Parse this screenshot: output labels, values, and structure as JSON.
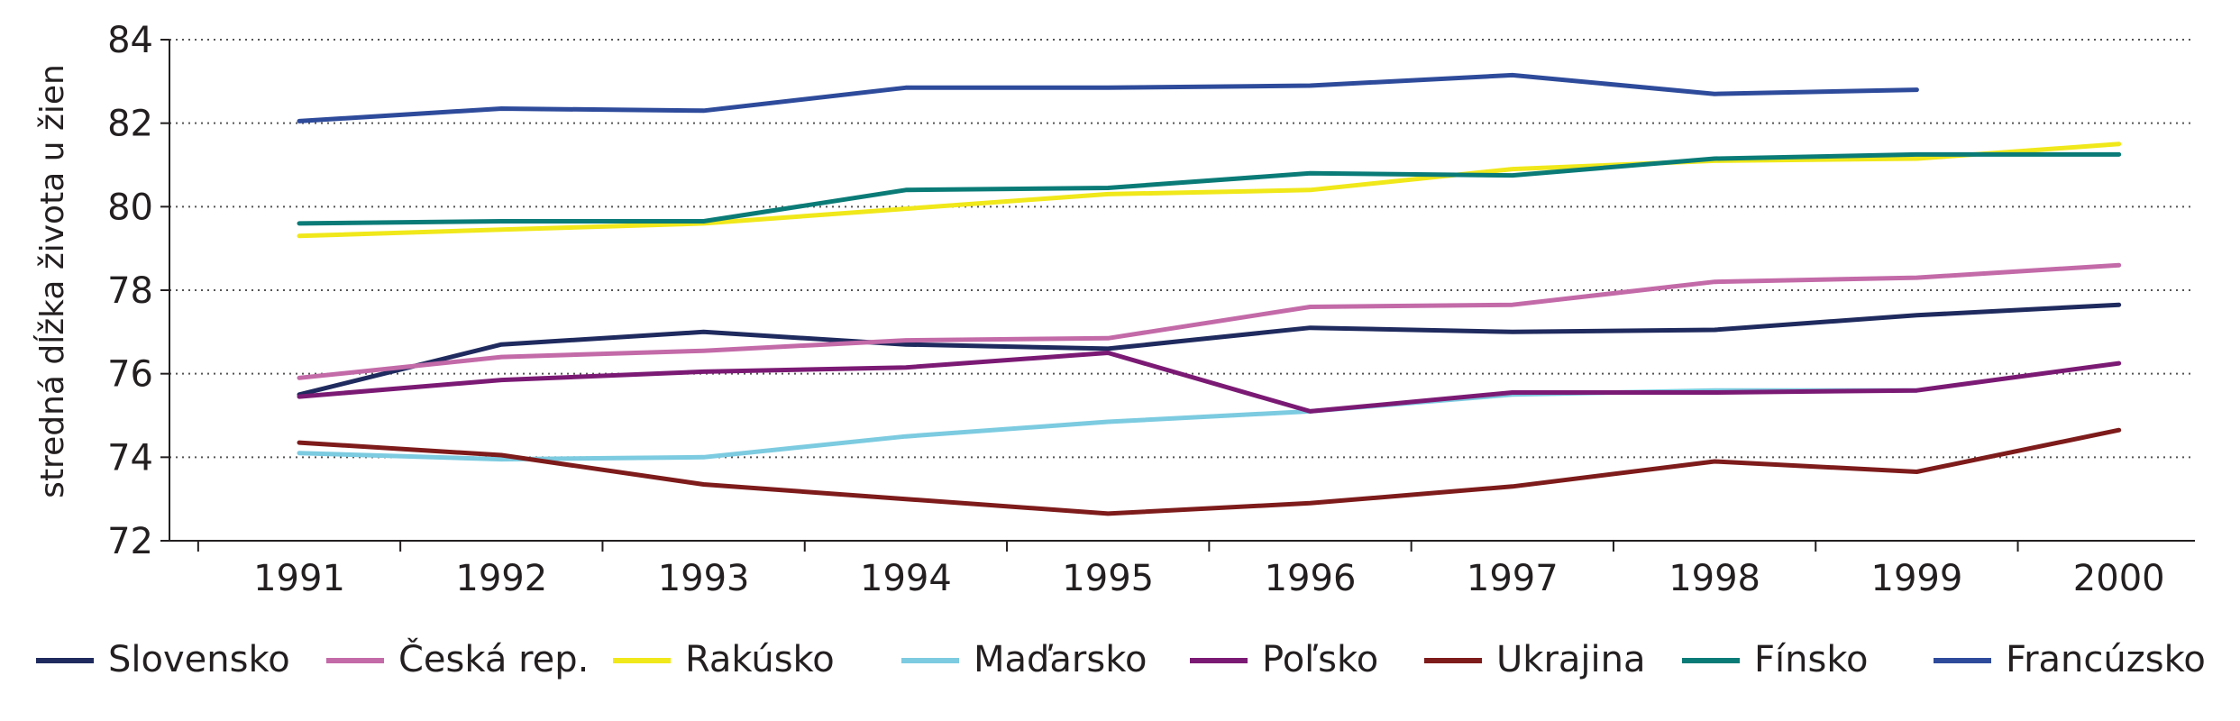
{
  "chart_data": {
    "type": "line",
    "title": "",
    "xlabel": "",
    "ylabel": "stredná dĺžka života u žien",
    "x": [
      1991,
      1992,
      1993,
      1994,
      1995,
      1996,
      1997,
      1998,
      1999,
      2000
    ],
    "x_tick_labels": [
      "1991",
      "1992",
      "1993",
      "1994",
      "1995",
      "1996",
      "1997",
      "1998",
      "1999",
      "2000"
    ],
    "ylim": [
      72,
      84
    ],
    "y_ticks": [
      72,
      74,
      76,
      78,
      80,
      82,
      84
    ],
    "y_tick_labels": [
      "72",
      "74",
      "76",
      "78",
      "80",
      "82",
      "84"
    ],
    "grid": "horizontal dotted",
    "legend_position": "bottom",
    "series": [
      {
        "name": "Slovensko",
        "color": "#1f2a5e",
        "values": [
          75.5,
          76.7,
          77.0,
          76.7,
          76.6,
          77.1,
          77.0,
          77.05,
          77.4,
          77.65
        ]
      },
      {
        "name": "Česká rep.",
        "color": "#c36aa8",
        "values": [
          75.9,
          76.4,
          76.55,
          76.8,
          76.85,
          77.6,
          77.65,
          78.2,
          78.3,
          78.6
        ]
      },
      {
        "name": "Rakúsko",
        "color": "#f0e81a",
        "values": [
          79.3,
          79.45,
          79.6,
          79.95,
          80.3,
          80.4,
          80.9,
          81.1,
          81.15,
          81.5
        ]
      },
      {
        "name": "Maďarsko",
        "color": "#7ccbe0",
        "values": [
          74.1,
          73.95,
          74.0,
          74.5,
          74.85,
          75.1,
          75.5,
          75.6,
          75.6,
          null
        ]
      },
      {
        "name": "Poľsko",
        "color": "#7b1a74",
        "values": [
          75.45,
          75.85,
          76.05,
          76.15,
          76.5,
          75.1,
          75.55,
          75.55,
          75.6,
          76.25
        ]
      },
      {
        "name": "Ukrajina",
        "color": "#7e1b1b",
        "values": [
          74.35,
          74.05,
          73.35,
          73.0,
          72.65,
          72.9,
          73.3,
          73.9,
          73.65,
          74.65
        ]
      },
      {
        "name": "Fínsko",
        "color": "#0a7b77",
        "values": [
          79.6,
          79.65,
          79.65,
          80.4,
          80.45,
          80.8,
          80.75,
          81.15,
          81.25,
          81.25
        ]
      },
      {
        "name": "Francúzsko",
        "color": "#2e4b9b",
        "values": [
          82.05,
          82.35,
          82.3,
          82.85,
          82.85,
          82.9,
          83.15,
          82.7,
          82.8,
          null
        ]
      }
    ]
  }
}
